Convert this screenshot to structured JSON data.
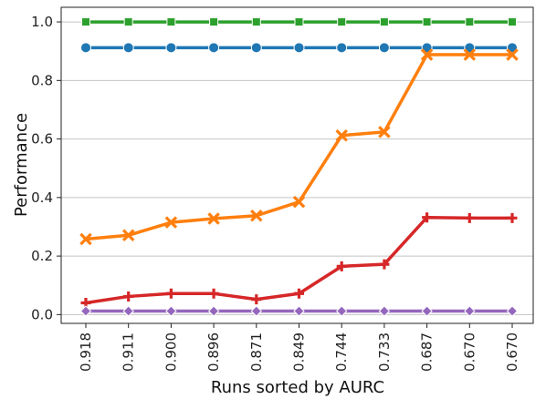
{
  "chart_data": {
    "type": "line",
    "title": "",
    "xlabel": "Runs sorted by AURC",
    "ylabel": "Performance",
    "categories": [
      "0.918",
      "0.911",
      "0.900",
      "0.896",
      "0.871",
      "0.849",
      "0.744",
      "0.733",
      "0.687",
      "0.670",
      "0.670"
    ],
    "ylim": [
      -0.03,
      1.05
    ],
    "yticks": [
      0.0,
      0.2,
      0.4,
      0.6,
      0.8,
      1.0
    ],
    "ytick_labels": [
      "0.0",
      "0.2",
      "0.4",
      "0.6",
      "0.8",
      "1.0"
    ],
    "grid": "horizontal",
    "legend": "none",
    "series": [
      {
        "color": "#2ca02c",
        "marker": "square",
        "values": [
          1.0,
          1.0,
          1.0,
          1.0,
          1.0,
          1.0,
          1.0,
          1.0,
          1.0,
          1.0,
          1.0
        ]
      },
      {
        "color": "#1f77b4",
        "marker": "circle",
        "values": [
          0.912,
          0.912,
          0.912,
          0.912,
          0.912,
          0.912,
          0.912,
          0.912,
          0.912,
          0.912,
          0.912
        ]
      },
      {
        "color": "#ff7f0e",
        "marker": "x",
        "values": [
          0.258,
          0.271,
          0.315,
          0.328,
          0.338,
          0.385,
          0.612,
          0.624,
          0.888,
          0.888,
          0.888
        ]
      },
      {
        "color": "#d62728",
        "marker": "plus",
        "values": [
          0.04,
          0.062,
          0.072,
          0.072,
          0.052,
          0.072,
          0.165,
          0.172,
          0.332,
          0.33,
          0.33
        ]
      },
      {
        "color": "#9467bd",
        "marker": "diamond",
        "values": [
          0.012,
          0.012,
          0.012,
          0.012,
          0.012,
          0.012,
          0.012,
          0.012,
          0.012,
          0.012,
          0.012
        ]
      }
    ]
  }
}
